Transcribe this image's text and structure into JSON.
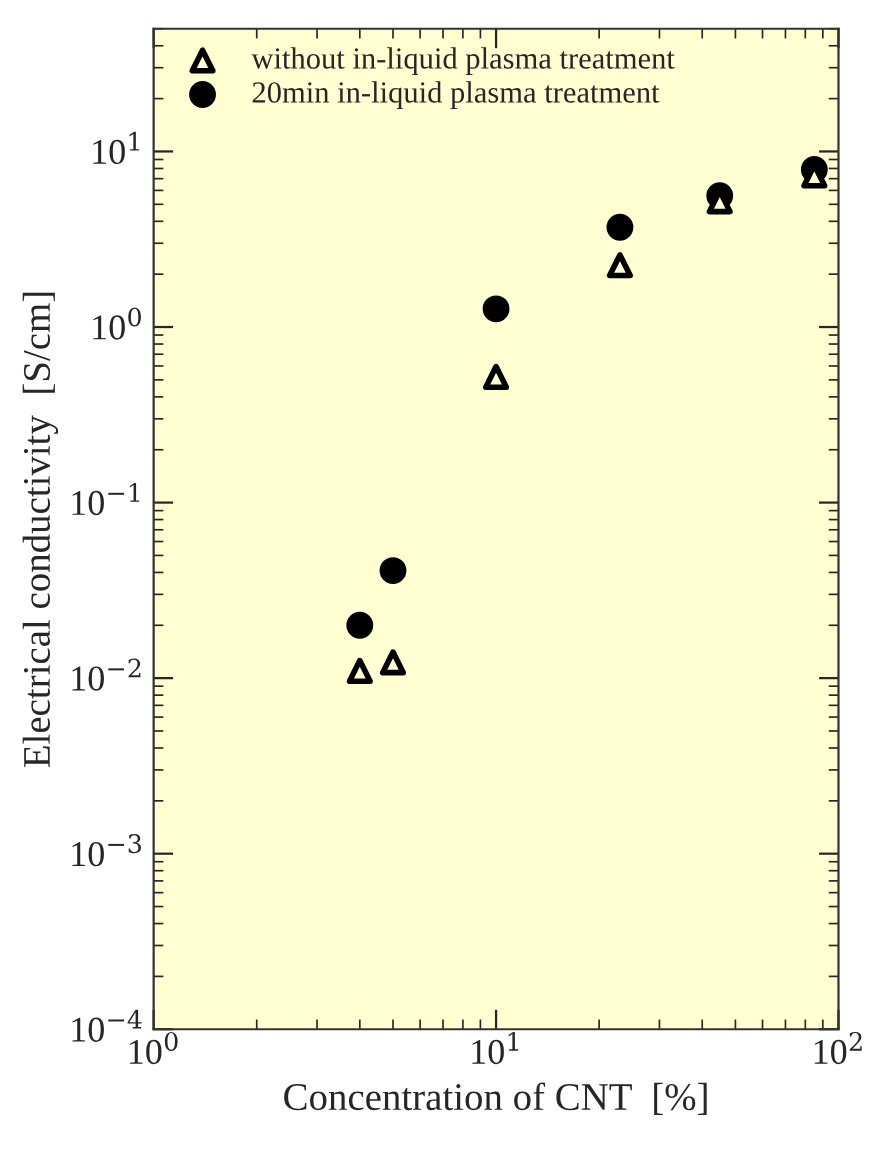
{
  "chart_data": {
    "type": "scatter",
    "xlabel": "Concentration of CNT  [%]",
    "ylabel": "Electrical conductivity  [S/cm]",
    "log": "xy",
    "grid": false,
    "legend": "top left",
    "xlim": [
      1,
      100
    ],
    "xticks": [
      {
        "value": 1,
        "label": "10$^{0}$"
      },
      {
        "value": 10,
        "label": "10$^{1}$"
      },
      {
        "value": 100,
        "label": "10$^{2}$"
      }
    ],
    "ylim": [
      0.0001,
      50
    ],
    "yticks": [
      {
        "value": 0.0001,
        "label": "10$^{−4}$"
      },
      {
        "value": 0.001,
        "label": "10$^{−3}$"
      },
      {
        "value": 0.01,
        "label": "10$^{−2}$"
      },
      {
        "value": 0.1,
        "label": "10$^{−1}$"
      },
      {
        "value": 1,
        "label": "10$^{0}$"
      },
      {
        "value": 10,
        "label": "10$^{1}$"
      }
    ],
    "series": [
      {
        "name": "without in-liquid plasma treatment",
        "color": "#000000",
        "marker": "triangle",
        "x": [
          4,
          5,
          10,
          23,
          45,
          85
        ],
        "values": [
          0.011,
          0.0123,
          0.52,
          2.25,
          5.2,
          7.3
        ]
      },
      {
        "name": "20min in-liquid plasma treatment",
        "color": "#000000",
        "marker": "circle",
        "x": [
          4,
          5,
          10,
          23,
          45,
          85
        ],
        "values": [
          0.02,
          0.041,
          1.27,
          3.7,
          5.6,
          7.9
        ]
      }
    ]
  }
}
